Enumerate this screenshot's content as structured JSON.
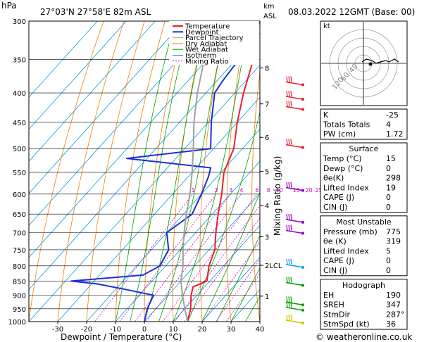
{
  "header": {
    "hpa_label": "hPa",
    "location": "27°03'N  27°58'E  82m  ASL",
    "km_label": "km",
    "asl_label": "ASL",
    "datetime": "08.03.2022  12GMT  (Base: 00)",
    "footer": "© weatheronline.co.uk"
  },
  "colors": {
    "temperature": "#e8202a",
    "dewpoint": "#1c2fd8",
    "parcel": "#a0a0a0",
    "dry_adiabat": "#f08000",
    "wet_adiabat": "#00a000",
    "isotherm": "#00a0e0",
    "mixing_ratio": "#d000d0",
    "wind_barb": "#9000c0"
  },
  "chart_data": {
    "type": "line",
    "xlabel": "Dewpoint / Temperature (°C)",
    "ylabel": "",
    "xlim": [
      -40,
      40
    ],
    "ylim": [
      1000,
      300
    ],
    "y_scale": "log",
    "skew": true,
    "x_ticks": [
      "-30",
      "-20",
      "-10",
      "0",
      "10",
      "20",
      "30",
      "40"
    ],
    "pressure_ticks": [
      "300",
      "350",
      "400",
      "450",
      "500",
      "550",
      "600",
      "650",
      "700",
      "750",
      "800",
      "850",
      "900",
      "950",
      "1000"
    ],
    "km_ticks": [
      {
        "label": "8",
        "p": 362
      },
      {
        "label": "7",
        "p": 418
      },
      {
        "label": "6",
        "p": 478
      },
      {
        "label": "5",
        "p": 548
      },
      {
        "label": "4",
        "p": 628
      },
      {
        "label": "3",
        "p": 712
      },
      {
        "label": "2LCL",
        "p": 798
      },
      {
        "label": "1",
        "p": 903
      }
    ],
    "mixing_ratio_axis_label": "Mixing Ratio (g/kg)",
    "mixing_ratio_labels": [
      "1",
      "2",
      "3",
      "4",
      "6",
      "8",
      "10",
      "15",
      "20",
      "25"
    ],
    "mixing_ratio_values": [
      1,
      2,
      3,
      4,
      6,
      8,
      10,
      15,
      20,
      25
    ],
    "legend": [
      "Temperature",
      "Dewpoint",
      "Parcel Trajectory",
      "Dry Adiabat",
      "Wet Adiabat",
      "Isotherm",
      "Mixing Ratio"
    ],
    "series": [
      {
        "name": "Temperature",
        "pressure": [
          1000,
          950,
          900,
          870,
          850,
          800,
          750,
          700,
          650,
          600,
          550,
          500,
          450,
          400,
          350,
          300
        ],
        "values": [
          15,
          12,
          8,
          6,
          9,
          5,
          2,
          -3,
          -8,
          -13,
          -19,
          -23,
          -30,
          -37,
          -44,
          -54
        ]
      },
      {
        "name": "Dewpoint",
        "pressure": [
          1000,
          950,
          900,
          880,
          860,
          850,
          830,
          800,
          750,
          700,
          650,
          600,
          560,
          540,
          520,
          500,
          450,
          400,
          380,
          350,
          300
        ],
        "values": [
          0,
          -3,
          -5,
          -16,
          -28,
          -38,
          -15,
          -12,
          -14,
          -20,
          -17,
          -20,
          -23,
          -25,
          -57,
          -31,
          -39,
          -47,
          -48,
          -49,
          -58
        ]
      },
      {
        "name": "Parcel Trajectory",
        "pressure": [
          1000,
          950,
          900,
          850,
          800,
          750,
          700,
          650,
          600,
          550,
          500,
          450,
          400,
          350,
          300
        ],
        "values": [
          15,
          10,
          5,
          0,
          -4,
          -9,
          -14,
          -19,
          -24,
          -30,
          -37,
          -45,
          -53,
          -61,
          -70
        ]
      }
    ],
    "wind_barbs": [
      {
        "p": 385,
        "color": "#e8202a"
      },
      {
        "p": 408,
        "color": "#e8202a"
      },
      {
        "p": 425,
        "color": "#e8202a"
      },
      {
        "p": 495,
        "color": "#e8202a"
      },
      {
        "p": 588,
        "color": "#9000c0"
      },
      {
        "p": 668,
        "color": "#9000c0"
      },
      {
        "p": 698,
        "color": "#9000c0"
      },
      {
        "p": 800,
        "color": "#00a0e0"
      },
      {
        "p": 860,
        "color": "#00a000"
      },
      {
        "p": 930,
        "color": "#00a000"
      },
      {
        "p": 950,
        "color": "#00a000"
      },
      {
        "p": 1000,
        "color": "#c8c800"
      }
    ],
    "hodograph": {
      "label": "kt",
      "ring_labels": [
        "40",
        "60",
        "120"
      ]
    }
  },
  "table": {
    "indices": [
      {
        "key": "K",
        "value": "-25"
      },
      {
        "key": "Totals Totals",
        "value": "4"
      },
      {
        "key": "PW (cm)",
        "value": "1.72"
      }
    ],
    "surface": {
      "title": "Surface",
      "rows": [
        {
          "key": "Temp (°C)",
          "value": "15"
        },
        {
          "key": "Dewp (°C)",
          "value": "0"
        },
        {
          "key": "θe(K)",
          "value": "298"
        },
        {
          "key": "Lifted Index",
          "value": "19"
        },
        {
          "key": "CAPE (J)",
          "value": "0"
        },
        {
          "key": "CIN (J)",
          "value": "0"
        }
      ]
    },
    "most_unstable": {
      "title": "Most Unstable",
      "rows": [
        {
          "key": "Pressure (mb)",
          "value": "775"
        },
        {
          "key": "θe (K)",
          "value": "319"
        },
        {
          "key": "Lifted Index",
          "value": "5"
        },
        {
          "key": "CAPE (J)",
          "value": "0"
        },
        {
          "key": "CIN (J)",
          "value": "0"
        }
      ]
    },
    "hodograph": {
      "title": "Hodograph",
      "rows": [
        {
          "key": "EH",
          "value": "190"
        },
        {
          "key": "SREH",
          "value": "347"
        },
        {
          "key": "StmDir",
          "value": "287°"
        },
        {
          "key": "StmSpd (kt)",
          "value": "36"
        }
      ]
    }
  }
}
